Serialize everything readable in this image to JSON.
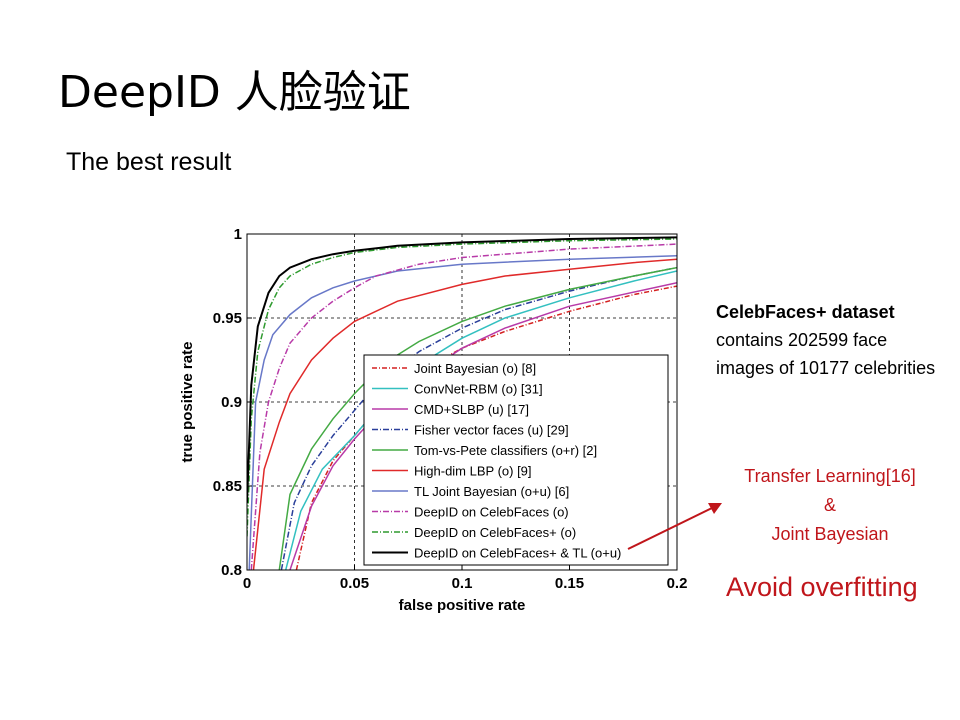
{
  "slide": {
    "title": "DeepID 人脸验证",
    "subtitle": "The best result",
    "dataset_title": "CelebFaces+ dataset",
    "dataset_desc": "contains 202599 face images of 10177 celebrities",
    "note_lines": [
      "Transfer Learning[16]",
      "&",
      "Joint Bayesian"
    ],
    "note_emphasis": "Avoid overfitting",
    "accent_color": "#c0161b",
    "arrow_icon": "red-arrow-icon"
  },
  "chart_data": {
    "type": "line",
    "xlabel": "false positive rate",
    "ylabel": "true positive rate",
    "xlim": [
      0,
      0.2
    ],
    "ylim": [
      0.8,
      1.0
    ],
    "xticks": [
      0,
      0.05,
      0.1,
      0.15,
      0.2
    ],
    "xtick_labels": [
      "0",
      "0.05",
      "0.1",
      "0.15",
      "0.2"
    ],
    "yticks": [
      0.8,
      0.85,
      0.9,
      0.95,
      1.0
    ],
    "ytick_labels": [
      "0.8",
      "0.85",
      "0.9",
      "0.95",
      "1"
    ],
    "grid": true,
    "legend_position": "bottom-right",
    "series": [
      {
        "name": "Joint Bayesian (o) [8]",
        "color": "#d42020",
        "dash": "5,2,1,2",
        "x": [
          0.023,
          0.03,
          0.04,
          0.05,
          0.06,
          0.07,
          0.08,
          0.1,
          0.12,
          0.15,
          0.18,
          0.2
        ],
        "y": [
          0.8,
          0.84,
          0.865,
          0.88,
          0.895,
          0.908,
          0.918,
          0.932,
          0.942,
          0.954,
          0.964,
          0.969
        ]
      },
      {
        "name": "ConvNet-RBM (o) [31]",
        "color": "#33c0c0",
        "dash": "",
        "x": [
          0.018,
          0.025,
          0.035,
          0.05,
          0.06,
          0.07,
          0.08,
          0.1,
          0.12,
          0.15,
          0.18,
          0.2
        ],
        "y": [
          0.8,
          0.835,
          0.86,
          0.88,
          0.895,
          0.91,
          0.922,
          0.938,
          0.95,
          0.962,
          0.972,
          0.978
        ]
      },
      {
        "name": "CMD+SLBP (u) [17]",
        "color": "#b83aa8",
        "dash": "",
        "x": [
          0.02,
          0.03,
          0.04,
          0.05,
          0.06,
          0.08,
          0.1,
          0.12,
          0.15,
          0.2
        ],
        "y": [
          0.8,
          0.838,
          0.862,
          0.878,
          0.892,
          0.915,
          0.932,
          0.944,
          0.957,
          0.971
        ]
      },
      {
        "name": "Fisher vector faces (u) [29]",
        "color": "#2a3f9a",
        "dash": "6,2,1,2",
        "x": [
          0.016,
          0.022,
          0.03,
          0.04,
          0.05,
          0.06,
          0.08,
          0.1,
          0.12,
          0.15,
          0.18,
          0.2
        ],
        "y": [
          0.8,
          0.84,
          0.862,
          0.88,
          0.895,
          0.91,
          0.93,
          0.944,
          0.955,
          0.966,
          0.975,
          0.98
        ]
      },
      {
        "name": "Tom-vs-Pete classifiers (o+r) [2]",
        "color": "#44aa44",
        "dash": "",
        "x": [
          0.015,
          0.02,
          0.03,
          0.04,
          0.05,
          0.06,
          0.07,
          0.08,
          0.1,
          0.12,
          0.15,
          0.18,
          0.2
        ],
        "y": [
          0.8,
          0.845,
          0.872,
          0.89,
          0.905,
          0.918,
          0.928,
          0.936,
          0.948,
          0.957,
          0.967,
          0.975,
          0.98
        ]
      },
      {
        "name": "High-dim LBP (o) [9]",
        "color": "#e02a2a",
        "dash": "",
        "x": [
          0.003,
          0.008,
          0.015,
          0.02,
          0.03,
          0.04,
          0.05,
          0.07,
          0.1,
          0.12,
          0.15,
          0.18,
          0.2
        ],
        "y": [
          0.8,
          0.86,
          0.888,
          0.905,
          0.925,
          0.938,
          0.948,
          0.96,
          0.97,
          0.975,
          0.979,
          0.983,
          0.985
        ]
      },
      {
        "name": "TL Joint Bayesian (o+u)  [6]",
        "color": "#6878c8",
        "dash": "",
        "x": [
          0.001,
          0.004,
          0.008,
          0.012,
          0.02,
          0.03,
          0.04,
          0.05,
          0.07,
          0.1,
          0.15,
          0.2
        ],
        "y": [
          0.8,
          0.9,
          0.925,
          0.94,
          0.952,
          0.962,
          0.968,
          0.972,
          0.978,
          0.982,
          0.985,
          0.987
        ]
      },
      {
        "name": "DeepID on CelebFaces (o)",
        "color": "#b83aa8",
        "dash": "6,2,1,2",
        "x": [
          0.002,
          0.006,
          0.01,
          0.015,
          0.02,
          0.03,
          0.04,
          0.05,
          0.06,
          0.08,
          0.1,
          0.15,
          0.2
        ],
        "y": [
          0.8,
          0.87,
          0.9,
          0.92,
          0.935,
          0.95,
          0.96,
          0.968,
          0.975,
          0.982,
          0.986,
          0.991,
          0.994
        ]
      },
      {
        "name": "DeepID on CelebFaces+ (o)",
        "color": "#2e9a2e",
        "dash": "6,2,1,2",
        "x": [
          0.0,
          0.002,
          0.005,
          0.01,
          0.015,
          0.02,
          0.03,
          0.04,
          0.05,
          0.07,
          0.1,
          0.15,
          0.2
        ],
        "y": [
          0.82,
          0.89,
          0.93,
          0.955,
          0.968,
          0.975,
          0.982,
          0.986,
          0.989,
          0.992,
          0.994,
          0.996,
          0.997
        ]
      },
      {
        "name": "DeepID on CelebFaces+ & TL (o+u)",
        "color": "#000000",
        "dash": "",
        "x": [
          0.0,
          0.002,
          0.005,
          0.01,
          0.015,
          0.02,
          0.03,
          0.04,
          0.05,
          0.07,
          0.1,
          0.15,
          0.2
        ],
        "y": [
          0.84,
          0.91,
          0.945,
          0.965,
          0.975,
          0.98,
          0.985,
          0.988,
          0.99,
          0.993,
          0.995,
          0.997,
          0.998
        ]
      }
    ]
  }
}
